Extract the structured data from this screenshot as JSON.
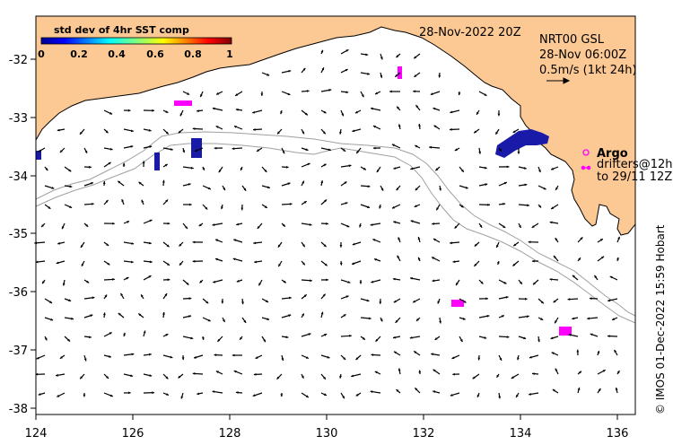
{
  "map": {
    "date_label": "28-Nov-2022 20Z",
    "product": {
      "line1": "NRT00 GSL",
      "line2": "28-Nov 06:00Z",
      "line3": "0.5m/s (1kt 24h)"
    },
    "colorbar": {
      "title": "std dev of 4hr SST comp",
      "ticks": [
        "0",
        "0.2",
        "0.4",
        "0.6",
        "0.8",
        "1"
      ]
    },
    "legend": {
      "argo": "Argo",
      "drifters_line1": "drifters@12h",
      "drifters_line2": "to 29/11 12Z"
    },
    "credit": "© IMOS 01-Dec-2022 15:59 Hobart",
    "x_ticks": [
      "124",
      "126",
      "128",
      "130",
      "132",
      "134",
      "136"
    ],
    "y_ticks": [
      "-32",
      "-33",
      "-34",
      "-35",
      "-36",
      "-37",
      "-38"
    ],
    "colors": {
      "land": "#fcc994",
      "high_std": "#1a1aa8",
      "drifter": "#ff00ff",
      "bathymetry": "#a0a0a0"
    }
  }
}
